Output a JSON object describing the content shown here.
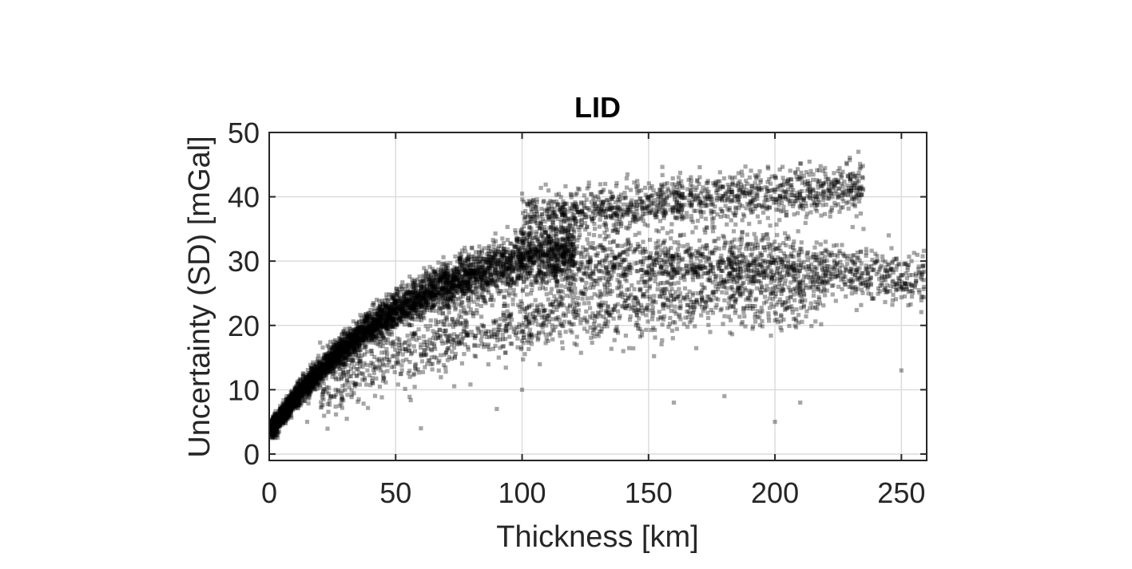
{
  "chart_data": {
    "type": "scatter",
    "title": "LID",
    "xlabel": "Thickness [km]",
    "ylabel": "Uncertainty (SD) [mGal]",
    "xlim": [
      0,
      260
    ],
    "ylim": [
      -1,
      50
    ],
    "xticks": [
      0,
      50,
      100,
      150,
      200,
      250
    ],
    "yticks": [
      0,
      10,
      20,
      30,
      40,
      50
    ],
    "grid": true,
    "marker_color": "#000000",
    "marker_opacity": 0.35,
    "n_points_shown": 9000,
    "series": [
      {
        "points": [
          [
            3,
            4
          ],
          [
            8,
            6
          ],
          [
            12,
            8
          ],
          [
            18,
            11
          ],
          [
            25,
            14
          ],
          [
            32,
            17
          ],
          [
            40,
            20
          ],
          [
            48,
            23
          ],
          [
            58,
            26
          ],
          [
            70,
            29
          ],
          [
            85,
            32
          ],
          [
            100,
            35
          ],
          [
            115,
            38
          ],
          [
            130,
            40
          ],
          [
            150,
            40
          ],
          [
            170,
            42
          ],
          [
            190,
            43
          ],
          [
            210,
            43
          ],
          [
            225,
            44
          ],
          [
            233,
            47
          ],
          [
            15,
            5
          ],
          [
            30,
            10
          ],
          [
            45,
            14
          ],
          [
            60,
            17
          ],
          [
            80,
            19
          ],
          [
            100,
            20
          ],
          [
            130,
            22
          ],
          [
            160,
            24
          ],
          [
            200,
            22
          ],
          [
            230,
            26
          ],
          [
            250,
            26
          ],
          [
            259,
            26
          ],
          [
            100,
            10
          ],
          [
            140,
            16
          ],
          [
            180,
            9
          ],
          [
            200,
            5
          ],
          [
            210,
            8
          ],
          [
            235,
            35
          ],
          [
            245,
            34
          ],
          [
            60,
            4
          ],
          [
            90,
            7
          ],
          [
            160,
            8
          ],
          [
            180,
            26
          ],
          [
            220,
            33
          ],
          [
            250,
            13
          ]
        ]
      }
    ]
  }
}
